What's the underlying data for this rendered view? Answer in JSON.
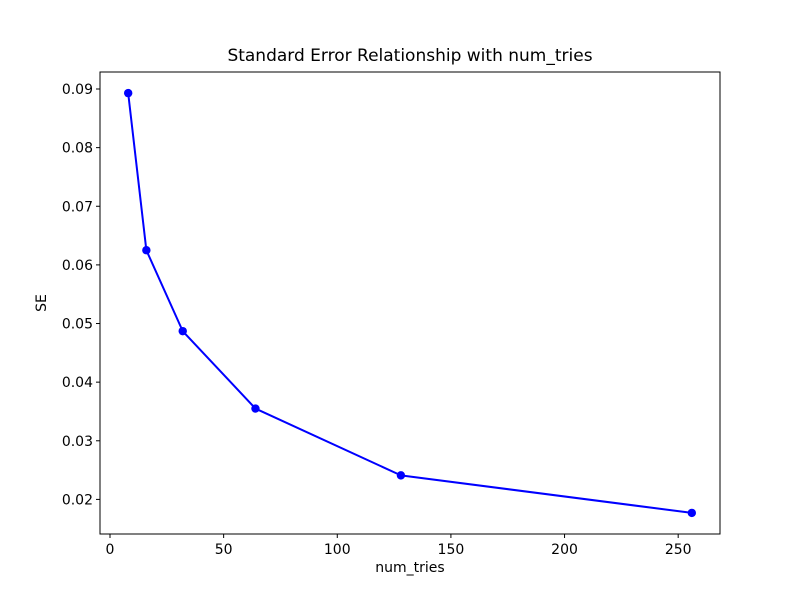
{
  "figure": {
    "background": "#ffffff",
    "axes_color": "#000000",
    "text_color": "#000000"
  },
  "chart_data": {
    "type": "line",
    "title": "Standard Error Relationship with num_tries",
    "xlabel": "num_tries",
    "ylabel": "SE",
    "x": [
      8,
      16,
      32,
      64,
      128,
      256
    ],
    "y": [
      0.0893,
      0.0625,
      0.0487,
      0.0355,
      0.0241,
      0.0177
    ],
    "series": [
      {
        "name": "SE",
        "color": "#0000ff",
        "marker": "circle",
        "values": [
          0.0893,
          0.0625,
          0.0487,
          0.0355,
          0.0241,
          0.0177
        ]
      }
    ],
    "line_color": "#0000ff",
    "xlim": [
      -4.4,
      268.4
    ],
    "ylim": [
      0.0141,
      0.0929
    ],
    "x_ticks": [
      0,
      50,
      100,
      150,
      200,
      250
    ],
    "x_tick_labels": [
      "0",
      "50",
      "100",
      "150",
      "200",
      "250"
    ],
    "y_ticks": [
      0.02,
      0.03,
      0.04,
      0.05,
      0.06,
      0.07,
      0.08,
      0.09
    ],
    "y_tick_labels": [
      "0.02",
      "0.03",
      "0.04",
      "0.05",
      "0.06",
      "0.07",
      "0.08",
      "0.09"
    ],
    "grid": false,
    "legend": "none"
  }
}
